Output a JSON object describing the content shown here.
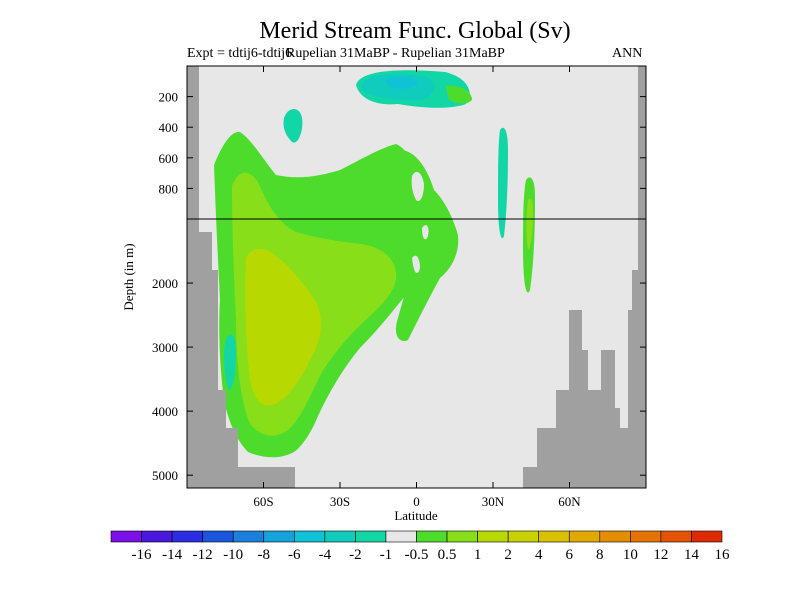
{
  "chart_data": {
    "type": "heatmap",
    "title": "Merid Stream Func. Global (Sv)",
    "left_label": "Expt = tdtij6-tdtij6",
    "center_label": "Rupelian  31MaBP - Rupelian  31MaBP",
    "right_label": "ANN",
    "xlabel": "Latitude",
    "ylabel": "Depth (in m)",
    "xlim": [
      -90,
      90
    ],
    "x_ticks": [
      "60S",
      "30S",
      "0",
      "30N",
      "60N"
    ],
    "x_tick_values": [
      -60,
      -30,
      0,
      30,
      60
    ],
    "y_ticks_upper": [
      "200",
      "400",
      "600",
      "800"
    ],
    "y_ticks_upper_values": [
      200,
      400,
      600,
      800
    ],
    "y_ticks_lower": [
      "2000",
      "3000",
      "4000",
      "5000"
    ],
    "y_ticks_lower_values": [
      2000,
      3000,
      4000,
      5000
    ],
    "upper_depth_range": [
      0,
      1000
    ],
    "lower_depth_range": [
      1000,
      5200
    ],
    "colorbar_labels": [
      "-16",
      "-14",
      "-12",
      "-10",
      "-8",
      "-6",
      "-4",
      "-2",
      "-1",
      "-0.5",
      "0.5",
      "1",
      "2",
      "4",
      "6",
      "8",
      "10",
      "12",
      "14",
      "16"
    ],
    "colorbar_colors": [
      "#7b10e8",
      "#4a18dc",
      "#2a2ee0",
      "#1c55dd",
      "#1c7fdc",
      "#16a3dc",
      "#10c2d6",
      "#10ccbd",
      "#12d6a6",
      "#e7e7e7",
      "#4ddc2c",
      "#88de19",
      "#b7d800",
      "#c9d200",
      "#d9c100",
      "#e0a800",
      "#e38e00",
      "#e67300",
      "#e45400",
      "#de2a00"
    ],
    "land_color": "#a0a0a0",
    "background_color": "#e7e7e7"
  }
}
